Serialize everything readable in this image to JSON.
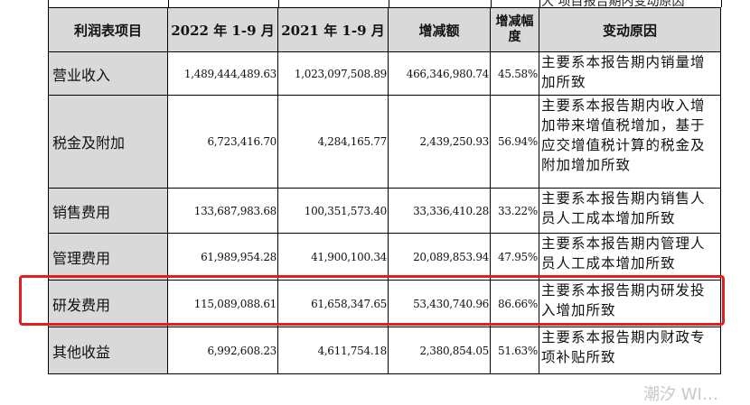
{
  "header_remnant": "大 项目报告期内变动原因",
  "columns": [
    "利润表项目",
    "2022 年 1-9 月",
    "2021 年 1-9 月",
    "增减额",
    "增减幅度",
    "变动原因"
  ],
  "rows": [
    {
      "item": "营业收入",
      "y2022": "1,489,444,489.63",
      "y2021": "1,023,097,508.89",
      "delta": "466,346,980.74",
      "pct": "45.58%",
      "reason": "主要系本报告期内销量增加所致"
    },
    {
      "item": "税金及附加",
      "y2022": "6,723,416.70",
      "y2021": "4,284,165.77",
      "delta": "2,439,250.93",
      "pct": "56.94%",
      "reason": "主要系本报告期内收入增加带来增值税增加，基于应交增值税计算的税金及附加增加所致"
    },
    {
      "item": "销售费用",
      "y2022": "133,687,983.68",
      "y2021": "100,351,573.40",
      "delta": "33,336,410.28",
      "pct": "33.22%",
      "reason": "主要系本报告期内销售人员人工成本增加所致"
    },
    {
      "item": "管理费用",
      "y2022": "61,989,954.28",
      "y2021": "41,900,100.34",
      "delta": "20,089,853.94",
      "pct": "47.95%",
      "reason": "主要系本报告期内管理人员人工成本增加所致"
    },
    {
      "item": "研发费用",
      "y2022": "115,089,088.61",
      "y2021": "61,658,347.65",
      "delta": "53,430,740.96",
      "pct": "86.66%",
      "reason": "主要系本报告期内研发投入增加所致"
    },
    {
      "item": "其他收益",
      "y2022": "6,992,608.23",
      "y2021": "4,611,754.18",
      "delta": "2,380,854.05",
      "pct": "51.63%",
      "reason": "主要系本报告期内财政专项补贴所致"
    }
  ],
  "highlight_row": "研发费用",
  "highlight_color": "#e02020",
  "watermark": "潮汐 WI…"
}
